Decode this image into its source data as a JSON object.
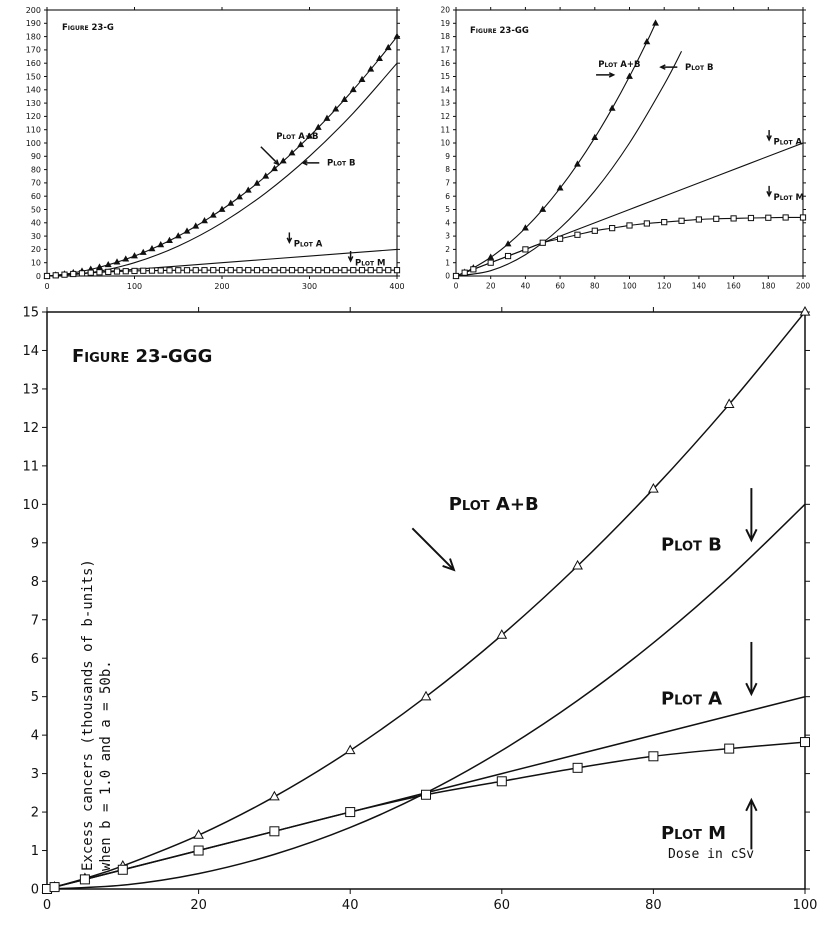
{
  "chart_data": [
    {
      "type": "line",
      "title": "Figure 23-G",
      "xlim": [
        0,
        400
      ],
      "ylim": [
        0,
        200
      ],
      "x_ticks": [
        0,
        100,
        200,
        300,
        400
      ],
      "y_ticks": [
        0,
        10,
        20,
        30,
        40,
        50,
        60,
        70,
        80,
        90,
        100,
        110,
        120,
        130,
        140,
        150,
        160,
        170,
        180,
        190,
        200
      ],
      "series": [
        {
          "name": "Plot A+B",
          "marker": "triangle",
          "x": [
            0,
            10,
            20,
            30,
            40,
            50,
            60,
            70,
            80,
            90,
            100,
            110,
            120,
            130,
            140,
            150,
            160,
            170,
            180,
            190,
            200,
            210,
            220,
            230,
            240,
            250,
            260,
            270,
            280,
            290,
            300,
            310,
            320,
            330,
            340,
            350,
            360,
            370,
            380,
            390,
            400
          ],
          "y": [
            0,
            0.6,
            1.4,
            2.4,
            3.6,
            5,
            6.6,
            8.4,
            10.4,
            12.6,
            15,
            17.6,
            20.4,
            23.4,
            26.6,
            30,
            33.6,
            37.4,
            41.4,
            45.6,
            50,
            54.6,
            59.4,
            64.4,
            69.6,
            75,
            80.6,
            86.4,
            92.4,
            98.6,
            105,
            111.6,
            118.4,
            125.4,
            132.6,
            140,
            147.6,
            155.4,
            163.4,
            171.6,
            180
          ]
        },
        {
          "name": "Plot B",
          "marker": "none",
          "x": [
            0,
            50,
            100,
            150,
            200,
            250,
            300,
            350,
            400
          ],
          "y": [
            0,
            2.5,
            10,
            22.5,
            40,
            62.5,
            90,
            122.5,
            160
          ]
        },
        {
          "name": "Plot A",
          "marker": "none",
          "x": [
            0,
            100,
            200,
            300,
            400
          ],
          "y": [
            0,
            5,
            10,
            15,
            20
          ]
        },
        {
          "name": "Plot M",
          "marker": "square",
          "x": [
            0,
            10,
            20,
            30,
            40,
            50,
            60,
            70,
            80,
            90,
            100,
            110,
            120,
            130,
            140,
            150,
            160,
            170,
            180,
            190,
            200,
            210,
            220,
            230,
            240,
            250,
            260,
            270,
            280,
            290,
            300,
            310,
            320,
            330,
            340,
            350,
            360,
            370,
            380,
            390,
            400
          ],
          "y": [
            0,
            0.5,
            1,
            1.5,
            2,
            2.5,
            2.8,
            3.1,
            3.4,
            3.6,
            3.8,
            3.95,
            4.05,
            4.15,
            4.25,
            4.3,
            4.33,
            4.36,
            4.38,
            4.4,
            4.4,
            4.4,
            4.4,
            4.4,
            4.4,
            4.4,
            4.4,
            4.4,
            4.4,
            4.4,
            4.4,
            4.4,
            4.4,
            4.4,
            4.4,
            4.4,
            4.4,
            4.4,
            4.4,
            4.4,
            4.4
          ]
        }
      ],
      "annotations": [
        {
          "text": "Plot A+B",
          "x": 262,
          "y": 103,
          "arrow": "down-right"
        },
        {
          "text": "Plot B",
          "x": 320,
          "y": 83,
          "arrow": "left"
        },
        {
          "text": "Plot A",
          "x": 282,
          "y": 22,
          "arrow": "down"
        },
        {
          "text": "Plot M",
          "x": 352,
          "y": 8,
          "arrow": "down"
        }
      ]
    },
    {
      "type": "line",
      "title": "Figure 23-GG",
      "xlim": [
        0,
        200
      ],
      "ylim": [
        0,
        20
      ],
      "x_ticks": [
        0,
        20,
        40,
        60,
        80,
        100,
        120,
        140,
        160,
        180,
        200
      ],
      "y_ticks": [
        0,
        1,
        2,
        3,
        4,
        5,
        6,
        7,
        8,
        9,
        10,
        11,
        12,
        13,
        14,
        15,
        16,
        17,
        18,
        19,
        20
      ],
      "series": [
        {
          "name": "Plot A+B",
          "marker": "triangle",
          "x": [
            0,
            5,
            10,
            20,
            30,
            40,
            50,
            60,
            70,
            80,
            90,
            100,
            110,
            115
          ],
          "y": [
            0,
            0.275,
            0.6,
            1.4,
            2.4,
            3.6,
            5,
            6.6,
            8.4,
            10.4,
            12.6,
            15,
            17.6,
            19
          ]
        },
        {
          "name": "Plot B",
          "marker": "none",
          "x": [
            0,
            20,
            40,
            60,
            80,
            100,
            120,
            130
          ],
          "y": [
            0,
            0.4,
            1.6,
            3.6,
            6.4,
            10,
            14.4,
            16.9
          ]
        },
        {
          "name": "Plot A",
          "marker": "none",
          "x": [
            0,
            50,
            100,
            150,
            200
          ],
          "y": [
            0,
            2.5,
            5,
            7.5,
            10
          ]
        },
        {
          "name": "Plot M",
          "marker": "square",
          "x": [
            0,
            5,
            10,
            20,
            30,
            40,
            50,
            60,
            70,
            80,
            90,
            100,
            110,
            120,
            130,
            140,
            150,
            160,
            170,
            180,
            190,
            200
          ],
          "y": [
            0,
            0.25,
            0.5,
            1,
            1.5,
            2,
            2.5,
            2.8,
            3.1,
            3.4,
            3.6,
            3.8,
            3.95,
            4.05,
            4.15,
            4.25,
            4.3,
            4.33,
            4.36,
            4.38,
            4.4,
            4.4
          ]
        }
      ],
      "annotations": [
        {
          "text": "Plot A+B",
          "x": 82,
          "y": 15.7,
          "arrow": "right"
        },
        {
          "text": "Plot B",
          "x": 132,
          "y": 15.5,
          "arrow": "left"
        },
        {
          "text": "Plot A",
          "x": 183,
          "y": 9.9,
          "arrow": "down"
        },
        {
          "text": "Plot M",
          "x": 183,
          "y": 5.7,
          "arrow": "down"
        }
      ]
    },
    {
      "type": "line",
      "title": "Figure 23-GGG",
      "ylabel": "Excess cancers (thousands of b-units)",
      "ylabel2": "when b = 1.0 and a = 50b.",
      "xlabel": "Dose in cSv",
      "xlim": [
        0,
        100
      ],
      "ylim": [
        0,
        15
      ],
      "x_ticks": [
        0,
        20,
        40,
        60,
        80,
        100
      ],
      "y_ticks": [
        0,
        1,
        2,
        3,
        4,
        5,
        6,
        7,
        8,
        9,
        10,
        11,
        12,
        13,
        14,
        15
      ],
      "series": [
        {
          "name": "Plot A+B",
          "marker": "triangle",
          "x": [
            0,
            1,
            5,
            10,
            20,
            30,
            40,
            50,
            60,
            70,
            80,
            90,
            100
          ],
          "y": [
            0,
            0.052,
            0.275,
            0.6,
            1.4,
            2.4,
            3.6,
            5,
            6.6,
            8.4,
            10.4,
            12.6,
            15
          ]
        },
        {
          "name": "Plot B",
          "marker": "none",
          "x": [
            0,
            10,
            20,
            30,
            40,
            50,
            60,
            70,
            80,
            90,
            100
          ],
          "y": [
            0,
            0.1,
            0.4,
            0.9,
            1.6,
            2.5,
            3.6,
            4.9,
            6.4,
            8.1,
            10
          ]
        },
        {
          "name": "Plot A",
          "marker": "none",
          "x": [
            0,
            20,
            40,
            60,
            80,
            100
          ],
          "y": [
            0,
            1,
            2,
            3,
            4,
            5
          ]
        },
        {
          "name": "Plot M",
          "marker": "square",
          "x": [
            0,
            1,
            5,
            10,
            20,
            30,
            40,
            50,
            60,
            70,
            80,
            90,
            100
          ],
          "y": [
            0,
            0.05,
            0.25,
            0.5,
            1,
            1.5,
            2,
            2.45,
            2.8,
            3.15,
            3.45,
            3.65,
            3.82
          ]
        }
      ],
      "annotations": [
        {
          "text": "Plot A+B",
          "x": 53,
          "y": 9.85,
          "arrow": "down-right"
        },
        {
          "text": "Plot B",
          "x": 81,
          "y": 8.8,
          "arrow": "down"
        },
        {
          "text": "Plot A",
          "x": 81,
          "y": 4.8,
          "arrow": "down"
        },
        {
          "text": "Plot M",
          "x": 81,
          "y": 1.3,
          "arrow": "up"
        }
      ]
    }
  ]
}
